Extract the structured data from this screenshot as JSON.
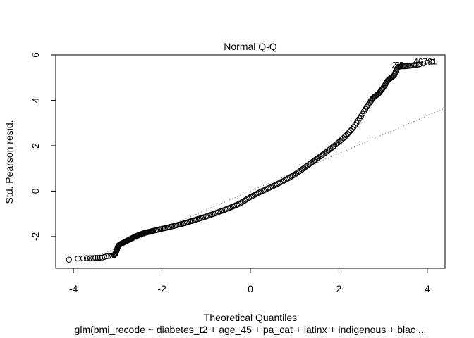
{
  "chart_data": {
    "type": "scatter",
    "title": "Normal Q-Q",
    "xlabel": "Theoretical Quantiles",
    "ylabel": "Std. Pearson resid.",
    "caption": "glm(bmi_recode ~ diabetes_t2 + age_45 + pa_cat + latinx + indigenous + blac ...",
    "xlim": [
      -4.4,
      4.4
    ],
    "ylim": [
      -3.4,
      6.0
    ],
    "x_ticks": [
      -4,
      -2,
      0,
      2,
      4
    ],
    "y_ticks": [
      -2,
      0,
      2,
      4,
      6
    ],
    "marker": "open-circle",
    "reference_line": {
      "style": "dotted",
      "intercept": 0.0,
      "slope": 0.83
    },
    "point_labels": [
      {
        "text": "46781",
        "x": 3.95,
        "y": 5.7
      },
      {
        "text": "2",
        "x": 3.25,
        "y": 5.55
      },
      {
        "text": "2",
        "x": 3.32,
        "y": 5.55
      },
      {
        "text": "5",
        "x": 3.42,
        "y": 5.55
      }
    ],
    "series": [
      {
        "points": [
          [
            -4.1,
            -3.02
          ],
          [
            -3.9,
            -2.97
          ],
          [
            -3.78,
            -2.96
          ],
          [
            -3.7,
            -2.95
          ],
          [
            -3.62,
            -2.95
          ],
          [
            -3.55,
            -2.95
          ],
          [
            -3.5,
            -2.94
          ],
          [
            -3.45,
            -2.94
          ],
          [
            -3.4,
            -2.93
          ],
          [
            -3.35,
            -2.93
          ],
          [
            -3.3,
            -2.9
          ],
          [
            -3.25,
            -2.87
          ],
          [
            -3.2,
            -2.86
          ],
          [
            -3.15,
            -2.85
          ],
          [
            -3.12,
            -2.84
          ],
          [
            -3.08,
            -2.82
          ],
          [
            -3.05,
            -2.75
          ],
          [
            -3.02,
            -2.62
          ],
          [
            -3.0,
            -2.48
          ],
          [
            -2.98,
            -2.4
          ],
          [
            -2.95,
            -2.35
          ],
          [
            -2.9,
            -2.3
          ],
          [
            -2.85,
            -2.25
          ],
          [
            -2.8,
            -2.2
          ],
          [
            -2.75,
            -2.15
          ],
          [
            -2.7,
            -2.1
          ],
          [
            -2.65,
            -2.05
          ],
          [
            -2.6,
            -2.0
          ],
          [
            -2.55,
            -1.96
          ],
          [
            -2.5,
            -1.92
          ],
          [
            -2.45,
            -1.88
          ],
          [
            -2.4,
            -1.85
          ],
          [
            -2.35,
            -1.82
          ],
          [
            -2.3,
            -1.8
          ],
          [
            -2.25,
            -1.78
          ],
          [
            -2.2,
            -1.75
          ],
          [
            -2.1,
            -1.71
          ],
          [
            -2.0,
            -1.66
          ],
          [
            -1.9,
            -1.62
          ],
          [
            -1.8,
            -1.57
          ],
          [
            -1.7,
            -1.52
          ],
          [
            -1.6,
            -1.47
          ],
          [
            -1.5,
            -1.42
          ],
          [
            -1.4,
            -1.36
          ],
          [
            -1.3,
            -1.3
          ],
          [
            -1.2,
            -1.24
          ],
          [
            -1.1,
            -1.18
          ],
          [
            -1.0,
            -1.12
          ],
          [
            -0.9,
            -1.05
          ],
          [
            -0.8,
            -0.98
          ],
          [
            -0.7,
            -0.91
          ],
          [
            -0.6,
            -0.84
          ],
          [
            -0.5,
            -0.76
          ],
          [
            -0.4,
            -0.68
          ],
          [
            -0.3,
            -0.6
          ],
          [
            -0.2,
            -0.5
          ],
          [
            -0.1,
            -0.38
          ],
          [
            0.0,
            -0.26
          ],
          [
            0.1,
            -0.16
          ],
          [
            0.2,
            -0.06
          ],
          [
            0.3,
            0.03
          ],
          [
            0.4,
            0.12
          ],
          [
            0.5,
            0.21
          ],
          [
            0.6,
            0.3
          ],
          [
            0.7,
            0.4
          ],
          [
            0.8,
            0.5
          ],
          [
            0.9,
            0.61
          ],
          [
            1.0,
            0.73
          ],
          [
            1.1,
            0.86
          ],
          [
            1.2,
            1.0
          ],
          [
            1.3,
            1.14
          ],
          [
            1.4,
            1.28
          ],
          [
            1.5,
            1.42
          ],
          [
            1.6,
            1.56
          ],
          [
            1.7,
            1.7
          ],
          [
            1.8,
            1.85
          ],
          [
            1.9,
            2.0
          ],
          [
            2.0,
            2.16
          ],
          [
            2.1,
            2.33
          ],
          [
            2.2,
            2.52
          ],
          [
            2.3,
            2.74
          ],
          [
            2.4,
            3.0
          ],
          [
            2.5,
            3.3
          ],
          [
            2.6,
            3.62
          ],
          [
            2.7,
            3.9
          ],
          [
            2.75,
            4.05
          ],
          [
            2.8,
            4.15
          ],
          [
            2.85,
            4.22
          ],
          [
            2.9,
            4.3
          ],
          [
            2.95,
            4.42
          ],
          [
            3.0,
            4.55
          ],
          [
            3.05,
            4.7
          ],
          [
            3.1,
            4.86
          ],
          [
            3.15,
            4.95
          ],
          [
            3.2,
            5.02
          ],
          [
            3.25,
            5.1
          ],
          [
            3.3,
            5.35
          ],
          [
            3.35,
            5.48
          ],
          [
            3.42,
            5.5
          ],
          [
            3.5,
            5.5
          ],
          [
            3.6,
            5.52
          ],
          [
            3.7,
            5.55
          ],
          [
            3.82,
            5.58
          ],
          [
            4.1,
            5.7
          ]
        ]
      }
    ]
  }
}
